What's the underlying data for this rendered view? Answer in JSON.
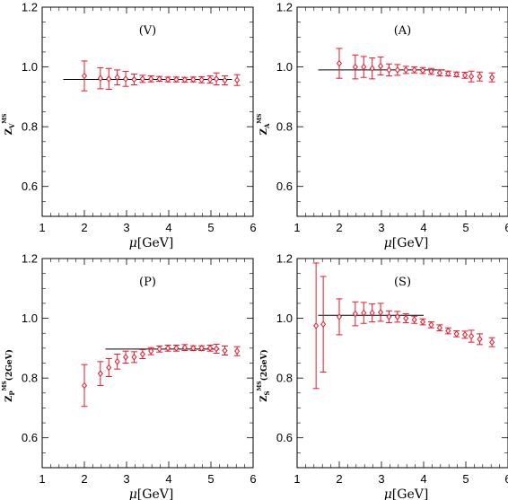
{
  "chart_data": [
    {
      "type": "scatter",
      "panel_label": "(V)",
      "xlabel_symbol": "μ",
      "xlabel_unit": "[GeV]",
      "ylabel": {
        "main": "Z",
        "sub": "V",
        "sup": "MS",
        "tail": ""
      },
      "xlim": [
        1,
        6
      ],
      "ylim": [
        0.5,
        1.2
      ],
      "xticks": [
        1,
        2,
        3,
        4,
        5,
        6
      ],
      "yticks": [
        0.6,
        0.8,
        1.0,
        1.2
      ],
      "ytick_labels": [
        "0.6",
        "0.8",
        "1.0",
        "1.2"
      ],
      "color": "#e8182c",
      "fit_line": {
        "x": [
          1.5,
          5.5
        ],
        "y": 0.958
      },
      "series": [
        {
          "x": [
            2.0,
            2.38,
            2.58,
            2.78,
            2.98,
            3.18,
            3.38,
            3.58,
            3.78,
            3.98,
            4.18,
            4.38,
            4.58,
            4.78,
            4.98,
            5.13,
            5.33,
            5.62
          ],
          "y": [
            0.97,
            0.962,
            0.96,
            0.965,
            0.96,
            0.958,
            0.96,
            0.96,
            0.96,
            0.958,
            0.958,
            0.957,
            0.958,
            0.957,
            0.958,
            0.96,
            0.955,
            0.956
          ],
          "yerr": [
            0.05,
            0.035,
            0.035,
            0.025,
            0.025,
            0.018,
            0.012,
            0.01,
            0.008,
            0.008,
            0.008,
            0.008,
            0.008,
            0.01,
            0.012,
            0.02,
            0.015,
            0.018
          ]
        }
      ]
    },
    {
      "type": "scatter",
      "panel_label": "(A)",
      "xlabel_symbol": "μ",
      "xlabel_unit": "[GeV]",
      "ylabel": {
        "main": "Z",
        "sub": "A",
        "sup": "MS",
        "tail": ""
      },
      "xlim": [
        1,
        6
      ],
      "ylim": [
        0.5,
        1.2
      ],
      "xticks": [
        1,
        2,
        3,
        4,
        5,
        6
      ],
      "yticks": [
        0.6,
        0.8,
        1.0,
        1.2
      ],
      "ytick_labels": [
        "0.6",
        "0.8",
        "1.0",
        "1.2"
      ],
      "color": "#e8182c",
      "fit_line": {
        "x": [
          1.5,
          4.5
        ],
        "y": 0.99
      },
      "series": [
        {
          "x": [
            2.0,
            2.38,
            2.58,
            2.78,
            2.98,
            3.18,
            3.38,
            3.58,
            3.78,
            3.98,
            4.18,
            4.38,
            4.58,
            4.78,
            4.98,
            5.13,
            5.33,
            5.62
          ],
          "y": [
            1.012,
            1.0,
            1.0,
            0.995,
            1.003,
            0.99,
            0.99,
            0.99,
            0.99,
            0.988,
            0.985,
            0.98,
            0.978,
            0.975,
            0.972,
            0.968,
            0.968,
            0.965
          ],
          "yerr": [
            0.05,
            0.04,
            0.035,
            0.035,
            0.03,
            0.02,
            0.018,
            0.012,
            0.01,
            0.01,
            0.01,
            0.01,
            0.008,
            0.008,
            0.01,
            0.018,
            0.015,
            0.015
          ]
        }
      ]
    },
    {
      "type": "scatter",
      "panel_label": "(P)",
      "xlabel_symbol": "μ",
      "xlabel_unit": "[GeV]",
      "ylabel": {
        "main": "Z",
        "sub": "P",
        "sup": "MS",
        "tail": "(2GeV)"
      },
      "xlim": [
        1,
        6
      ],
      "ylim": [
        0.5,
        1.2
      ],
      "xticks": [
        1,
        2,
        3,
        4,
        5,
        6
      ],
      "yticks": [
        0.6,
        0.8,
        1.0,
        1.2
      ],
      "ytick_labels": [
        "0.6",
        "0.8",
        "1.0",
        "1.2"
      ],
      "color": "#e8182c",
      "fit_line": {
        "x": [
          2.5,
          5.2
        ],
        "y": 0.897
      },
      "series": [
        {
          "x": [
            2.0,
            2.38,
            2.58,
            2.78,
            2.98,
            3.18,
            3.38,
            3.58,
            3.78,
            3.98,
            4.18,
            4.38,
            4.58,
            4.78,
            4.98,
            5.13,
            5.33,
            5.62
          ],
          "y": [
            0.775,
            0.815,
            0.835,
            0.855,
            0.87,
            0.87,
            0.88,
            0.89,
            0.897,
            0.9,
            0.9,
            0.902,
            0.9,
            0.9,
            0.9,
            0.898,
            0.892,
            0.89
          ],
          "yerr": [
            0.07,
            0.04,
            0.03,
            0.025,
            0.02,
            0.018,
            0.015,
            0.012,
            0.01,
            0.01,
            0.01,
            0.01,
            0.008,
            0.008,
            0.01,
            0.015,
            0.015,
            0.015
          ]
        }
      ]
    },
    {
      "type": "scatter",
      "panel_label": "(S)",
      "xlabel_symbol": "μ",
      "xlabel_unit": "[GeV]",
      "ylabel": {
        "main": "Z",
        "sub": "S",
        "sup": "MS",
        "tail": "(2GeV)"
      },
      "xlim": [
        1,
        6
      ],
      "ylim": [
        0.5,
        1.2
      ],
      "xticks": [
        1,
        2,
        3,
        4,
        5,
        6
      ],
      "yticks": [
        0.6,
        0.8,
        1.0,
        1.2
      ],
      "ytick_labels": [
        "0.6",
        "0.8",
        "1.0",
        "1.2"
      ],
      "color": "#e8182c",
      "fit_line": {
        "x": [
          1.5,
          4.0
        ],
        "y": 1.01
      },
      "series": [
        {
          "x": [
            1.45,
            1.62,
            2.0,
            2.38,
            2.58,
            2.78,
            2.98,
            3.18,
            3.38,
            3.58,
            3.78,
            3.98,
            4.18,
            4.38,
            4.58,
            4.78,
            4.98,
            5.13,
            5.33,
            5.62
          ],
          "y": [
            0.975,
            0.98,
            1.005,
            1.015,
            1.018,
            1.018,
            1.02,
            1.005,
            1.005,
            1.0,
            0.995,
            0.988,
            0.978,
            0.968,
            0.958,
            0.948,
            0.945,
            0.94,
            0.93,
            0.92
          ],
          "yerr": [
            0.21,
            0.16,
            0.06,
            0.04,
            0.035,
            0.03,
            0.03,
            0.02,
            0.018,
            0.015,
            0.012,
            0.01,
            0.01,
            0.01,
            0.01,
            0.01,
            0.012,
            0.02,
            0.018,
            0.015
          ]
        }
      ]
    }
  ]
}
